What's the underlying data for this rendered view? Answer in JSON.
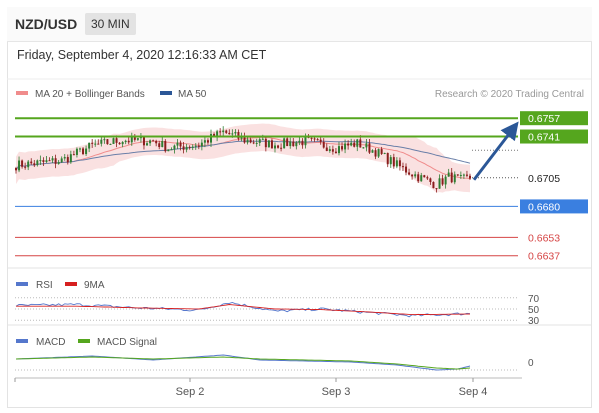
{
  "header": {
    "pair": "NZD/USD",
    "timeframe": "30 MIN"
  },
  "date_text": "Friday, September 4, 2020 12:16:33 AM CET",
  "colors": {
    "bollinger": "#f08c8c",
    "ma50": "#2b5797",
    "green": "#55a61e",
    "blue": "#3a7fe0",
    "red": "#d64545",
    "rsi": "#5577cc",
    "ma9": "#d62020",
    "macd": "#5577cc",
    "signal": "#55a61e",
    "arrow": "#2b5797"
  },
  "chart_data": [
    {
      "type": "candlestick",
      "legend": {
        "bollinger": "MA 20 + Bollinger Bands",
        "ma50": "MA 50"
      },
      "credit": "Research © 2020 Trading Central",
      "ylim": [
        0.6628,
        0.6772
      ],
      "candles_count": 150,
      "close_path": [
        [
          0,
          0.6716
        ],
        [
          15,
          0.672
        ],
        [
          25,
          0.6733
        ],
        [
          35,
          0.6738
        ],
        [
          45,
          0.6737
        ],
        [
          50,
          0.6731
        ],
        [
          60,
          0.6734
        ],
        [
          68,
          0.6745
        ],
        [
          75,
          0.6738
        ],
        [
          85,
          0.6734
        ],
        [
          95,
          0.6737
        ],
        [
          105,
          0.6731
        ],
        [
          112,
          0.6735
        ],
        [
          118,
          0.6728
        ],
        [
          125,
          0.6716
        ],
        [
          132,
          0.6706
        ],
        [
          138,
          0.6699
        ],
        [
          142,
          0.6706
        ],
        [
          146,
          0.6703
        ],
        [
          149,
          0.6705
        ]
      ],
      "levels": [
        {
          "value": "0.6757",
          "kind": "resistance"
        },
        {
          "value": "0.6741",
          "kind": "resistance"
        },
        {
          "value": "0.6705",
          "kind": "current"
        },
        {
          "value": "0.6680",
          "kind": "support"
        },
        {
          "value": "0.6653",
          "kind": "support"
        },
        {
          "value": "0.6637",
          "kind": "support"
        }
      ],
      "forecast": {
        "from": 0.6705,
        "to": 0.675
      },
      "x_ticks": [
        "Sep 2",
        "Sep 3",
        "Sep 4"
      ]
    },
    {
      "type": "line",
      "name": "RSI panel",
      "legend": [
        "RSI",
        "9MA"
      ],
      "ylim": [
        25,
        75
      ],
      "levels": [
        "70",
        "50",
        "30"
      ],
      "rsi_path": [
        [
          0,
          56
        ],
        [
          20,
          58
        ],
        [
          40,
          52
        ],
        [
          60,
          48
        ],
        [
          70,
          62
        ],
        [
          85,
          46
        ],
        [
          100,
          50
        ],
        [
          115,
          44
        ],
        [
          130,
          38
        ],
        [
          149,
          42
        ]
      ],
      "ma9_path": [
        [
          0,
          55
        ],
        [
          20,
          55
        ],
        [
          40,
          52
        ],
        [
          60,
          50
        ],
        [
          70,
          58
        ],
        [
          85,
          50
        ],
        [
          100,
          49
        ],
        [
          115,
          45
        ],
        [
          130,
          40
        ],
        [
          149,
          41
        ]
      ]
    },
    {
      "type": "line",
      "name": "MACD panel",
      "legend": [
        "MACD",
        "MACD Signal"
      ],
      "zero_label": "0",
      "macd_path": [
        [
          0,
          0.0003
        ],
        [
          25,
          0.0006
        ],
        [
          45,
          0.0002
        ],
        [
          68,
          0.0007
        ],
        [
          80,
          0.0002
        ],
        [
          95,
          0.0001
        ],
        [
          110,
          0.0
        ],
        [
          125,
          -0.0003
        ],
        [
          138,
          -0.0008
        ],
        [
          145,
          -0.0007
        ],
        [
          149,
          -0.0004
        ]
      ],
      "signal_path": [
        [
          0,
          0.0003
        ],
        [
          25,
          0.0005
        ],
        [
          45,
          0.0003
        ],
        [
          68,
          0.0005
        ],
        [
          80,
          0.0003
        ],
        [
          95,
          0.0002
        ],
        [
          110,
          0.0001
        ],
        [
          125,
          -0.0002
        ],
        [
          138,
          -0.0006
        ],
        [
          145,
          -0.0007
        ],
        [
          149,
          -0.0006
        ]
      ]
    }
  ]
}
